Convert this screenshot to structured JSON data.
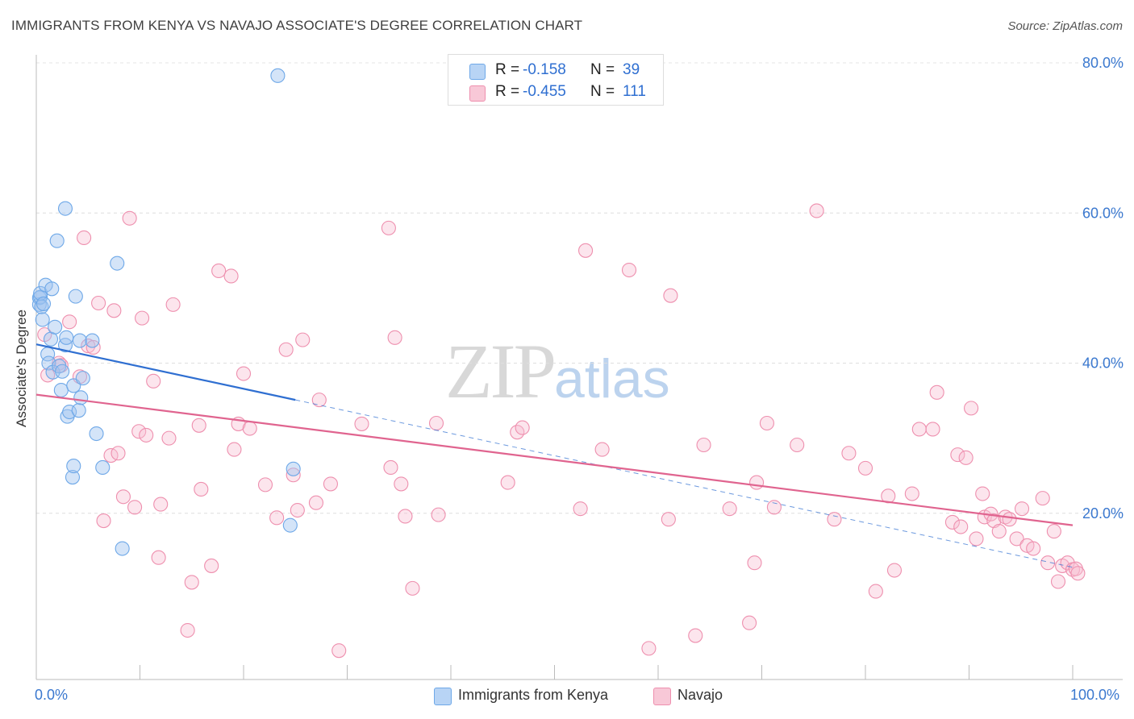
{
  "title": "IMMIGRANTS FROM KENYA VS NAVAJO ASSOCIATE'S DEGREE CORRELATION CHART",
  "source": "Source: ZipAtlas.com",
  "watermark": {
    "zip": "ZIP",
    "atlas": "atlas"
  },
  "legend": {
    "r_label": "R =",
    "n_label": "N =",
    "rows": [
      {
        "r": "-0.158",
        "n": "39",
        "color": "#6ea8e8",
        "fill": "#b8d4f5"
      },
      {
        "r": "-0.455",
        "n": "111",
        "color": "#ee8fae",
        "fill": "#f8c8d7"
      }
    ]
  },
  "bottom_legend": [
    "Immigrants from Kenya",
    "Navajo"
  ],
  "x_tick_labels": {
    "left": "0.0%",
    "right": "100.0%"
  },
  "colors": {
    "kenya_stroke": "#6ea8e8",
    "kenya_fill": "rgba(160,196,240,0.45)",
    "navajo_stroke": "#ee8fae",
    "navajo_fill": "rgba(248,190,210,0.40)",
    "kenya_line": "#2f6fd1",
    "navajo_line": "#e0648f",
    "tick_label": "#3a78cf"
  },
  "chart_data": {
    "type": "scatter",
    "title": "IMMIGRANTS FROM KENYA VS NAVAJO ASSOCIATE'S DEGREE CORRELATION CHART",
    "xlabel": "",
    "ylabel": "Associate's Degree",
    "xlim": [
      0,
      100
    ],
    "ylim": [
      0,
      82
    ],
    "y_ticks": [
      20,
      40,
      60,
      80
    ],
    "y_tick_labels": [
      "20.0%",
      "40.0%",
      "60.0%",
      "80.0%"
    ],
    "x_ticks": [
      0,
      10,
      20,
      30,
      40,
      50,
      60,
      70,
      80,
      90,
      100
    ],
    "grid": true,
    "series": [
      {
        "name": "Immigrants from Kenya",
        "R": -0.158,
        "N": 39,
        "trend": {
          "x0": 0,
          "y0": 42.5,
          "x1": 25,
          "y1": 35.1,
          "dashed_x1": 100,
          "dashed_y1": 12.8
        },
        "points": [
          [
            0.3,
            48.7
          ],
          [
            0.3,
            47.8
          ],
          [
            0.4,
            48.8
          ],
          [
            0.4,
            49.3
          ],
          [
            0.5,
            47.5
          ],
          [
            0.6,
            45.8
          ],
          [
            0.7,
            47.9
          ],
          [
            0.9,
            50.4
          ],
          [
            1.1,
            41.2
          ],
          [
            1.2,
            40.0
          ],
          [
            1.4,
            43.2
          ],
          [
            1.5,
            49.9
          ],
          [
            1.6,
            38.8
          ],
          [
            1.8,
            44.8
          ],
          [
            2.0,
            56.3
          ],
          [
            2.2,
            39.6
          ],
          [
            2.4,
            36.4
          ],
          [
            2.5,
            38.9
          ],
          [
            2.8,
            60.6
          ],
          [
            2.8,
            42.4
          ],
          [
            2.9,
            43.4
          ],
          [
            3.0,
            32.9
          ],
          [
            3.2,
            33.5
          ],
          [
            3.5,
            24.8
          ],
          [
            3.6,
            26.3
          ],
          [
            3.6,
            37.0
          ],
          [
            3.8,
            48.9
          ],
          [
            4.1,
            33.7
          ],
          [
            4.2,
            43.0
          ],
          [
            4.3,
            35.4
          ],
          [
            4.5,
            38.0
          ],
          [
            5.4,
            43.0
          ],
          [
            5.8,
            30.6
          ],
          [
            6.4,
            26.1
          ],
          [
            7.8,
            53.3
          ],
          [
            8.3,
            15.3
          ],
          [
            23.3,
            78.3
          ],
          [
            24.5,
            18.4
          ],
          [
            24.8,
            25.9
          ]
        ]
      },
      {
        "name": "Navajo",
        "R": -0.455,
        "N": 111,
        "trend": {
          "x0": 0,
          "y0": 35.8,
          "x1": 100,
          "y1": 18.4
        },
        "points": [
          [
            0.8,
            43.8
          ],
          [
            1.1,
            38.4
          ],
          [
            2.2,
            40.0
          ],
          [
            2.4,
            39.7
          ],
          [
            3.2,
            45.5
          ],
          [
            4.2,
            38.2
          ],
          [
            5.0,
            42.3
          ],
          [
            4.6,
            56.7
          ],
          [
            5.5,
            42.1
          ],
          [
            6.0,
            48.0
          ],
          [
            6.5,
            19.0
          ],
          [
            7.2,
            27.7
          ],
          [
            7.5,
            47.0
          ],
          [
            7.9,
            28.0
          ],
          [
            8.4,
            22.2
          ],
          [
            9.0,
            59.3
          ],
          [
            9.5,
            20.8
          ],
          [
            9.9,
            30.9
          ],
          [
            10.2,
            46.0
          ],
          [
            10.6,
            30.4
          ],
          [
            11.3,
            37.6
          ],
          [
            11.8,
            14.1
          ],
          [
            12.0,
            21.2
          ],
          [
            12.8,
            30.0
          ],
          [
            13.2,
            47.8
          ],
          [
            15.0,
            10.8
          ],
          [
            14.6,
            4.4
          ],
          [
            15.7,
            31.7
          ],
          [
            15.9,
            23.2
          ],
          [
            16.9,
            13.0
          ],
          [
            17.6,
            52.3
          ],
          [
            18.8,
            51.6
          ],
          [
            19.1,
            28.5
          ],
          [
            19.5,
            31.9
          ],
          [
            20.0,
            38.6
          ],
          [
            20.6,
            31.3
          ],
          [
            22.1,
            23.8
          ],
          [
            23.2,
            19.4
          ],
          [
            24.1,
            41.8
          ],
          [
            24.8,
            25.1
          ],
          [
            25.2,
            20.4
          ],
          [
            25.7,
            43.1
          ],
          [
            27.0,
            21.4
          ],
          [
            27.3,
            35.1
          ],
          [
            28.4,
            23.9
          ],
          [
            29.2,
            1.7
          ],
          [
            31.4,
            31.9
          ],
          [
            34.0,
            58.0
          ],
          [
            34.2,
            26.1
          ],
          [
            34.6,
            43.4
          ],
          [
            35.2,
            23.9
          ],
          [
            35.6,
            19.6
          ],
          [
            36.3,
            10.0
          ],
          [
            38.6,
            32.0
          ],
          [
            38.8,
            19.8
          ],
          [
            45.5,
            24.1
          ],
          [
            46.4,
            30.8
          ],
          [
            46.9,
            31.4
          ],
          [
            52.5,
            20.6
          ],
          [
            53.0,
            55.0
          ],
          [
            54.6,
            28.5
          ],
          [
            57.2,
            52.4
          ],
          [
            59.1,
            2.0
          ],
          [
            61.2,
            49.0
          ],
          [
            61.0,
            19.2
          ],
          [
            63.6,
            3.7
          ],
          [
            64.4,
            29.1
          ],
          [
            66.9,
            20.6
          ],
          [
            68.8,
            5.4
          ],
          [
            69.3,
            13.4
          ],
          [
            69.5,
            24.1
          ],
          [
            70.5,
            32.0
          ],
          [
            71.2,
            20.8
          ],
          [
            73.4,
            29.1
          ],
          [
            75.3,
            60.3
          ],
          [
            77.0,
            19.2
          ],
          [
            78.4,
            28.0
          ],
          [
            80.0,
            26.0
          ],
          [
            81.0,
            9.6
          ],
          [
            82.2,
            22.3
          ],
          [
            82.8,
            12.4
          ],
          [
            84.5,
            22.6
          ],
          [
            85.2,
            31.2
          ],
          [
            86.5,
            31.2
          ],
          [
            86.9,
            36.1
          ],
          [
            88.4,
            18.8
          ],
          [
            88.9,
            27.8
          ],
          [
            89.2,
            18.2
          ],
          [
            89.7,
            27.4
          ],
          [
            90.2,
            34.0
          ],
          [
            90.7,
            16.6
          ],
          [
            91.3,
            22.6
          ],
          [
            91.5,
            19.5
          ],
          [
            92.1,
            19.9
          ],
          [
            92.4,
            19.0
          ],
          [
            92.9,
            17.6
          ],
          [
            93.5,
            19.5
          ],
          [
            93.9,
            19.2
          ],
          [
            94.6,
            16.6
          ],
          [
            95.1,
            20.6
          ],
          [
            95.6,
            15.7
          ],
          [
            96.2,
            15.3
          ],
          [
            97.1,
            22.0
          ],
          [
            97.6,
            13.4
          ],
          [
            98.2,
            17.6
          ],
          [
            98.6,
            10.9
          ],
          [
            99.0,
            13.0
          ],
          [
            99.5,
            13.4
          ],
          [
            100.0,
            12.5
          ],
          [
            100.3,
            12.6
          ],
          [
            100.5,
            12.0
          ]
        ]
      }
    ]
  }
}
